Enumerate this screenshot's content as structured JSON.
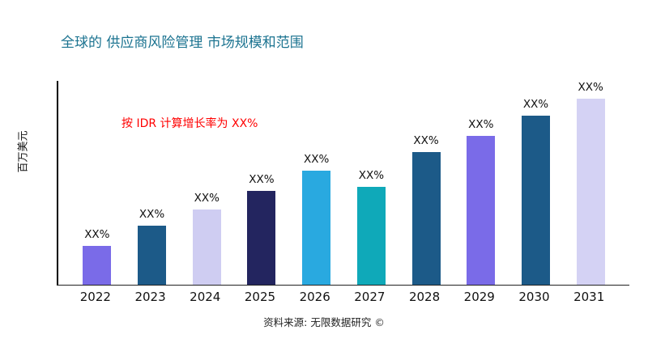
{
  "chart_data": {
    "type": "bar",
    "title": "全球的 供应商风险管理 市场规模和范围",
    "xlabel": "",
    "ylabel": "百万美元",
    "annotation": "按 IDR 计算增长率为 XX%",
    "source": "资料来源: 无限数据研究 ©",
    "categories": [
      "2022",
      "2023",
      "2024",
      "2025",
      "2026",
      "2027",
      "2028",
      "2029",
      "2030",
      "2031"
    ],
    "values": [
      19,
      29,
      37,
      46,
      56,
      48,
      65,
      73,
      83,
      92
    ],
    "bar_labels": [
      "XX%",
      "XX%",
      "XX%",
      "XX%",
      "XX%",
      "XX%",
      "XX%",
      "XX%",
      "XX%",
      "XX%"
    ],
    "bar_colors": [
      "#7a6be8",
      "#1c5a88",
      "#cfcdf2",
      "#23255f",
      "#29a9e0",
      "#0fa9b9",
      "#1c5a88",
      "#7a6be8",
      "#1c5a88",
      "#d4d2f4"
    ],
    "ylim": [
      0,
      100
    ],
    "grid": false,
    "legend": false,
    "colors": {
      "title": "#1b7390",
      "annotation": "#ff0000",
      "axis": "#000000"
    }
  }
}
